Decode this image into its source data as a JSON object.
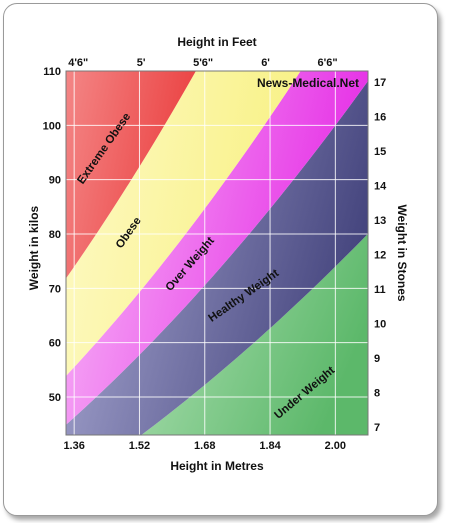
{
  "chart_data": {
    "type": "area",
    "title": "",
    "source_label": "News-Medical.Net",
    "x_bottom": {
      "label": "Height in Metres",
      "ticks": [
        1.36,
        1.52,
        1.68,
        1.84,
        2.0
      ],
      "tick_labels": [
        "1.36",
        "1.52",
        "1.68",
        "1.84",
        "2.00"
      ],
      "range": [
        1.34,
        2.08
      ]
    },
    "x_top": {
      "label": "Height in Feet",
      "tick_labels": [
        "4'6\"",
        "5'",
        "5'6\"",
        "6'",
        "6'6\""
      ],
      "ticks_m": [
        1.37,
        1.524,
        1.676,
        1.829,
        1.981
      ]
    },
    "y_left": {
      "label": "Weight in kilos",
      "ticks": [
        50,
        60,
        70,
        80,
        90,
        100,
        110
      ],
      "tick_labels": [
        "50",
        "60",
        "70",
        "80",
        "90",
        "100",
        "110"
      ],
      "range": [
        43,
        110
      ]
    },
    "y_right": {
      "label": "Weight in Stones",
      "ticks": [
        7,
        8,
        9,
        10,
        11,
        12,
        13,
        14,
        15,
        16,
        17
      ],
      "tick_labels": [
        "7",
        "8",
        "9",
        "10",
        "11",
        "12",
        "13",
        "14",
        "15",
        "16",
        "17"
      ]
    },
    "grid": true,
    "zones": [
      {
        "label": "Under Weight",
        "bmi_max": 18.5,
        "color_from": "#c8ecca",
        "color_to": "#5cb86a"
      },
      {
        "label": "Healthy Weight",
        "bmi_min": 18.5,
        "bmi_max": 25,
        "color_from": "#b0b0d8",
        "color_to": "#45457e"
      },
      {
        "label": "Over Weight",
        "bmi_min": 25,
        "bmi_max": 30,
        "color_from": "#f9c6f9",
        "color_to": "#e630e6"
      },
      {
        "label": "Obese",
        "bmi_min": 30,
        "bmi_max": 40,
        "color_from": "#fffbd2",
        "color_to": "#f7f07c"
      },
      {
        "label": "Extreme Obese",
        "bmi_min": 40,
        "color_from": "#f8a6a6",
        "color_to": "#e20000"
      }
    ]
  }
}
